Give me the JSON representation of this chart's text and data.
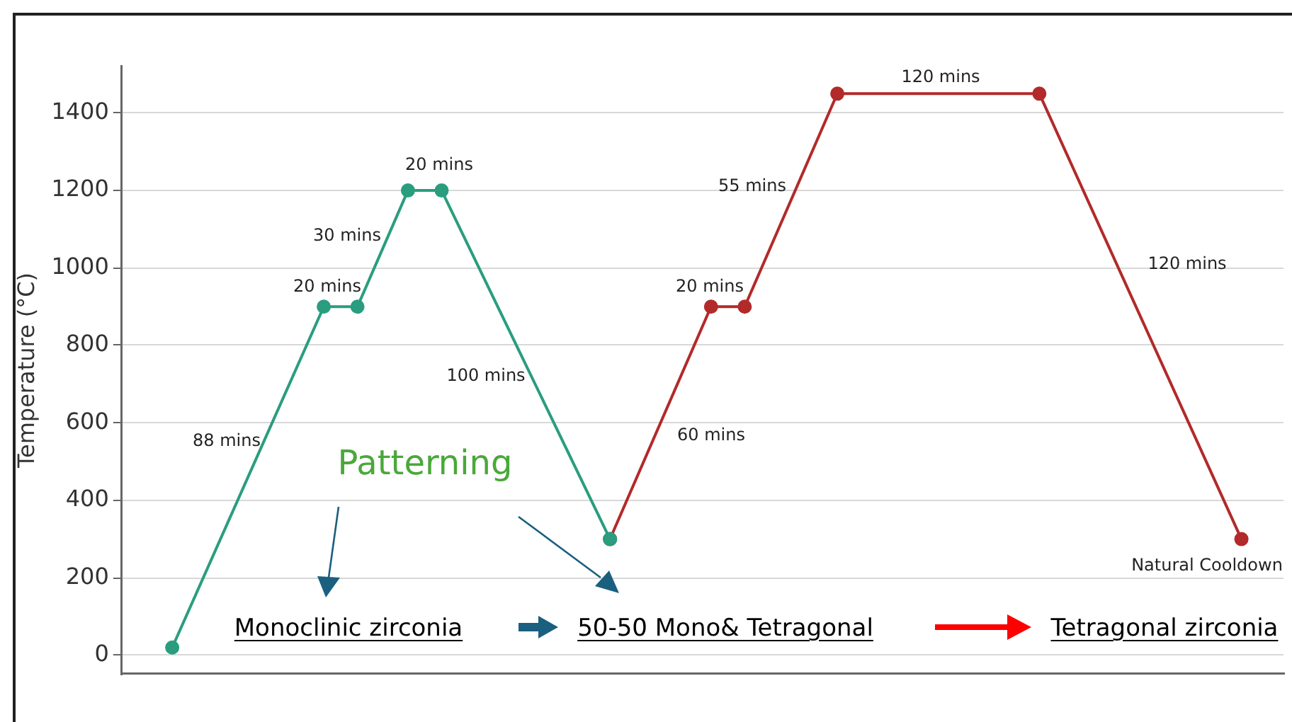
{
  "chart_data": {
    "type": "line",
    "ylabel": "Temperature (°C)",
    "categories": [
      null,
      null,
      null,
      null,
      null,
      null,
      null,
      null,
      null,
      null,
      null,
      null,
      null,
      null,
      null,
      null,
      null,
      null,
      null,
      null,
      null,
      null,
      null,
      null,
      null,
      null,
      null,
      null,
      null,
      null,
      null,
      null,
      null,
      null,
      null,
      null,
      null,
      null,
      null,
      null,
      null,
      null,
      null,
      null,
      null,
      null,
      null,
      null,
      null,
      null,
      null,
      null,
      null,
      null,
      null,
      null,
      null,
      null,
      null,
      null,
      null,
      null,
      null,
      null,
      null,
      null,
      null,
      null,
      null,
      null,
      null,
      null,
      null,
      null,
      null,
      null,
      null,
      null,
      null,
      null,
      null,
      null,
      null,
      null,
      null,
      null,
      null,
      null,
      null,
      null,
      null,
      null,
      null,
      null,
      null,
      null,
      null,
      null,
      null,
      null,
      null,
      null,
      null,
      null,
      null,
      null,
      null,
      null,
      null,
      null,
      null,
      null,
      null,
      null,
      null,
      null,
      null,
      null,
      null,
      null,
      null,
      null,
      null,
      null,
      null,
      null,
      null,
      null,
      null,
      null,
      null,
      null,
      null,
      null,
      null,
      null,
      null,
      null,
      null
    ],
    "ylim": [
      -48,
      1520
    ],
    "yticks": [
      0,
      200,
      400,
      600,
      800,
      1000,
      1200,
      1400
    ],
    "grid": "y",
    "legend": false,
    "tick_labels": "y",
    "marker": "circle",
    "line_style": "solid",
    "series": [
      {
        "color": "#2a9d7f",
        "values": [
          null,
          null,
          null,
          null,
          null,
          null,
          20,
          null,
          null,
          null,
          null,
          null,
          null,
          null,
          null,
          null,
          null,
          null,
          null,
          null,
          null,
          null,
          null,
          null,
          900,
          null,
          null,
          null,
          900,
          null,
          null,
          null,
          null,
          null,
          1200,
          null,
          null,
          null,
          1200,
          null,
          null,
          null,
          null,
          null,
          null,
          null,
          null,
          null,
          null,
          null,
          null,
          null,
          null,
          null,
          null,
          null,
          null,
          null,
          300,
          null,
          null,
          null,
          null,
          null,
          null,
          null,
          null,
          null,
          null,
          null,
          null,
          null,
          null,
          null,
          null,
          null,
          null,
          null,
          null,
          null,
          null,
          null,
          null,
          null,
          null,
          null,
          null,
          null,
          null,
          null,
          null,
          null,
          null,
          null,
          null,
          null,
          null,
          null,
          null,
          null,
          null,
          null,
          null,
          null,
          null,
          null,
          null,
          null,
          null,
          null,
          null,
          null,
          null,
          null,
          null,
          null,
          null,
          null,
          null,
          null,
          null,
          null,
          null,
          null,
          null,
          null,
          null,
          null,
          null,
          null,
          null,
          null,
          null,
          null,
          null,
          null,
          null,
          null,
          null
        ]
      },
      {
        "color": "#b22a2a",
        "values": [
          null,
          null,
          null,
          null,
          null,
          null,
          null,
          null,
          null,
          null,
          null,
          null,
          null,
          null,
          null,
          null,
          null,
          null,
          null,
          null,
          null,
          null,
          null,
          null,
          null,
          null,
          null,
          null,
          null,
          null,
          null,
          null,
          null,
          null,
          null,
          null,
          null,
          null,
          null,
          null,
          null,
          null,
          null,
          null,
          null,
          null,
          null,
          null,
          null,
          null,
          null,
          null,
          null,
          null,
          null,
          null,
          null,
          null,
          300,
          null,
          null,
          null,
          null,
          null,
          null,
          null,
          null,
          null,
          null,
          null,
          900,
          null,
          null,
          null,
          900,
          null,
          null,
          null,
          null,
          null,
          null,
          null,
          null,
          null,
          null,
          1450,
          null,
          null,
          null,
          null,
          null,
          null,
          null,
          null,
          null,
          null,
          null,
          null,
          null,
          null,
          null,
          null,
          null,
          null,
          null,
          null,
          null,
          null,
          null,
          1450,
          null,
          null,
          null,
          null,
          null,
          null,
          null,
          null,
          null,
          null,
          null,
          null,
          null,
          null,
          null,
          null,
          null,
          null,
          null,
          null,
          null,
          null,
          null,
          300,
          null,
          null,
          null,
          null,
          null
        ]
      }
    ],
    "annotations": [
      "88 mins",
      "20 mins",
      "30 mins",
      "20 mins",
      "100 mins",
      "60 mins",
      "20 mins",
      "55 mins",
      "120 mins",
      "120 mins",
      "Natural Cooldown",
      "Patterning",
      "Monoclinic zirconia",
      "50-50 Mono& Tetragonal",
      "Tetragonal zirconia"
    ]
  }
}
